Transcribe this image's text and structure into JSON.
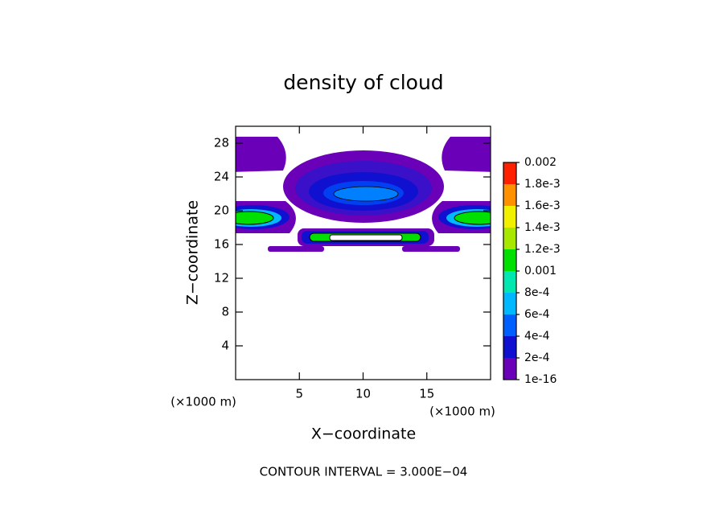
{
  "chart_data": {
    "type": "contour",
    "title": "density of cloud",
    "x_label": "X−coordinate",
    "y_label": "Z−coordinate",
    "x_unit": "(×1000 m)",
    "y_unit": "(×1000 m)",
    "annotation": "CONTOUR INTERVAL = 3.000E−04",
    "xlim": [
      0,
      20
    ],
    "ylim": [
      0,
      30
    ],
    "xticks": [
      5,
      10,
      15
    ],
    "yticks": [
      4,
      8,
      12,
      16,
      20,
      24,
      28
    ],
    "colorbar": {
      "ticks": [
        1e-16,
        {
          "value": 0.0002,
          "label": "2e-4"
        },
        {
          "value": 0.0004,
          "label": "4e-4"
        },
        {
          "value": 0.0006,
          "label": "6e-4"
        },
        {
          "value": 0.0008,
          "label": "8e-4"
        },
        0.001,
        {
          "value": 0.0012,
          "label": "1.2e-3"
        },
        {
          "value": 0.0014,
          "label": "1.4e-3"
        },
        {
          "value": 0.0016,
          "label": "1.6e-3"
        },
        {
          "value": 0.0018,
          "label": "1.8e-3"
        },
        0.002
      ],
      "colors": [
        "#6a00b8",
        "#1010d0",
        "#0060ff",
        "#00b8ff",
        "#00e8b0",
        "#00e000",
        "#a8e800",
        "#f0f000",
        "#ff9000",
        "#ff2000"
      ]
    }
  }
}
